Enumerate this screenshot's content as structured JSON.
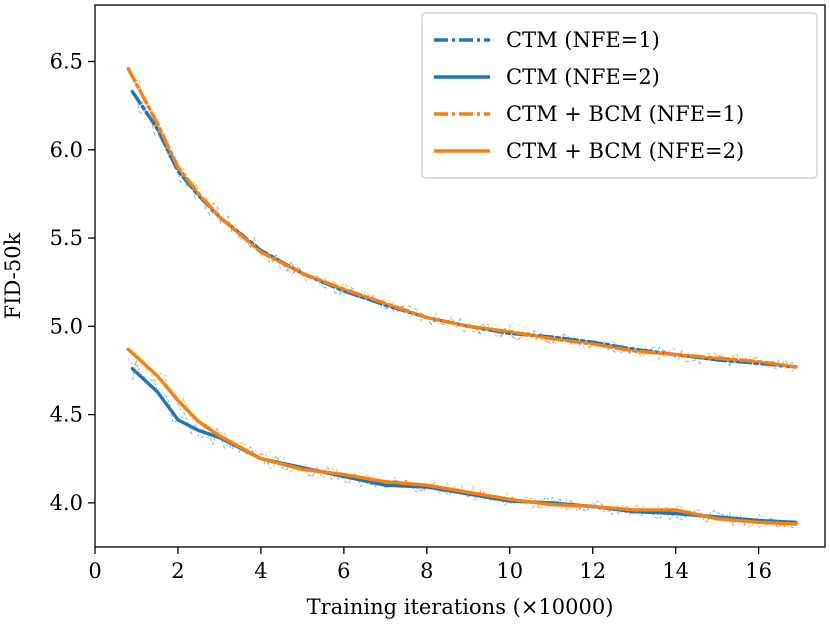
{
  "colors": {
    "blue": "#1f77b4",
    "orange": "#ff7f0e"
  },
  "chart_data": {
    "type": "line",
    "title": "",
    "xlabel": "Training iterations (×10000)",
    "ylabel": "FID-50k",
    "xlim": [
      0,
      17.6
    ],
    "ylim": [
      3.75,
      6.82
    ],
    "xticks": [
      0,
      2,
      4,
      6,
      8,
      10,
      12,
      14,
      16
    ],
    "xtick_labels": [
      "0",
      "2",
      "4",
      "6",
      "8",
      "10",
      "12",
      "14",
      "16"
    ],
    "yticks": [
      4.0,
      4.5,
      5.0,
      5.5,
      6.0,
      6.5
    ],
    "ytick_labels": [
      "4.0",
      "4.5",
      "5.0",
      "5.5",
      "6.0",
      "6.5"
    ],
    "grid": false,
    "legend_position": "top-right",
    "series": [
      {
        "name": "CTM (NFE=1)",
        "color": "#1f77b4",
        "style": "dashdot",
        "x": [
          0.9,
          1.5,
          2.0,
          2.5,
          3.0,
          4.0,
          5.0,
          6.0,
          7.0,
          8.0,
          9.0,
          10.0,
          11.0,
          12.0,
          13.0,
          14.0,
          15.0,
          16.0,
          16.9
        ],
        "y": [
          6.33,
          6.12,
          5.88,
          5.74,
          5.62,
          5.43,
          5.3,
          5.2,
          5.12,
          5.05,
          5.0,
          4.96,
          4.94,
          4.91,
          4.87,
          4.84,
          4.81,
          4.79,
          4.77
        ]
      },
      {
        "name": "CTM (NFE=2)",
        "color": "#1f77b4",
        "style": "solid",
        "x": [
          0.9,
          1.5,
          2.0,
          2.5,
          3.0,
          4.0,
          5.0,
          6.0,
          7.0,
          8.0,
          9.0,
          10.0,
          11.0,
          12.0,
          13.0,
          14.0,
          15.0,
          16.0,
          16.9
        ],
        "y": [
          4.76,
          4.63,
          4.47,
          4.41,
          4.37,
          4.25,
          4.2,
          4.15,
          4.1,
          4.09,
          4.05,
          4.01,
          4.0,
          3.98,
          3.95,
          3.94,
          3.92,
          3.9,
          3.89
        ]
      },
      {
        "name": "CTM + BCM (NFE=1)",
        "color": "#ff7f0e",
        "style": "dashdot",
        "x": [
          0.8,
          1.5,
          2.0,
          2.5,
          3.0,
          4.0,
          5.0,
          6.0,
          7.0,
          8.0,
          9.0,
          10.0,
          11.0,
          12.0,
          13.0,
          14.0,
          15.0,
          16.0,
          16.9
        ],
        "y": [
          6.46,
          6.15,
          5.9,
          5.75,
          5.62,
          5.42,
          5.3,
          5.21,
          5.13,
          5.05,
          5.0,
          4.97,
          4.93,
          4.9,
          4.86,
          4.84,
          4.82,
          4.8,
          4.77
        ]
      },
      {
        "name": "CTM + BCM (NFE=2)",
        "color": "#ff7f0e",
        "style": "solid",
        "x": [
          0.8,
          1.5,
          2.0,
          2.5,
          3.0,
          4.0,
          5.0,
          6.0,
          7.0,
          8.0,
          9.0,
          10.0,
          11.0,
          12.0,
          13.0,
          14.0,
          15.0,
          16.0,
          16.9
        ],
        "y": [
          4.87,
          4.72,
          4.58,
          4.46,
          4.38,
          4.25,
          4.19,
          4.16,
          4.12,
          4.1,
          4.06,
          4.02,
          3.99,
          3.98,
          3.96,
          3.96,
          3.91,
          3.89,
          3.88
        ]
      }
    ]
  }
}
